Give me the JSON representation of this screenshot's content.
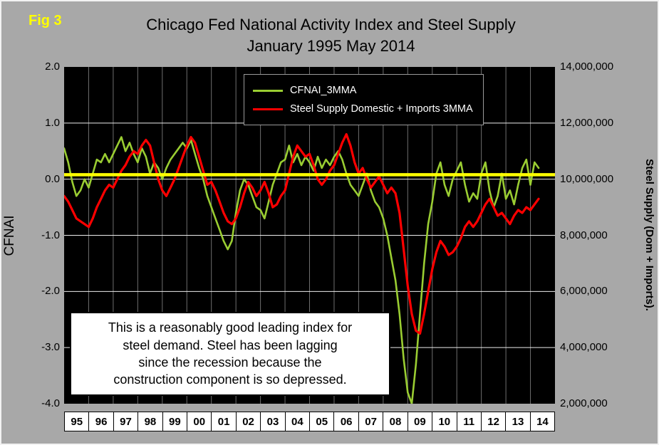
{
  "fig_label": "Fig 3",
  "title_line1": "Chicago Fed National Activity Index and Steel Supply",
  "title_line2": "January 1995 May 2014",
  "left_axis": {
    "title": "CFNAI",
    "ticks": [
      "2.0",
      "1.0",
      "0.0",
      "-1.0",
      "-2.0",
      "-3.0",
      "-4.0"
    ]
  },
  "right_axis": {
    "title": "Steel Supply (Dom + Imports).",
    "ticks": [
      "14,000,000",
      "12,000,000",
      "10,000,000",
      "8,000,000",
      "6,000,000",
      "4,000,000",
      "2,000,000"
    ]
  },
  "x_axis": {
    "years": [
      "95",
      "96",
      "97",
      "98",
      "99",
      "00",
      "01",
      "02",
      "03",
      "04",
      "05",
      "06",
      "07",
      "08",
      "09",
      "10",
      "11",
      "12",
      "13",
      "14"
    ]
  },
  "legend": [
    {
      "label": "CFNAI_3MMA",
      "color": "#9ACD32"
    },
    {
      "label": "Steel Supply Domestic + Imports 3MMA",
      "color": "#FF0000"
    }
  ],
  "annotation": "This is a reasonably good leading index for\nsteel demand. Steel has been lagging\nsince the recession because the\nconstruction component is so depressed.",
  "colors": {
    "background": "#a8a8a8",
    "plot_background": "#000000",
    "cfnai_line": "#9ACD32",
    "steel_line": "#FF0000",
    "reference_line": "#FFFF00",
    "fig_label": "#FFFF00"
  },
  "chart_data": {
    "type": "line",
    "title": "Chicago Fed National Activity Index and Steel Supply, January 1995 May 2014",
    "x_start": "1995-01",
    "x_end": "2014-05",
    "x_step_months": 2,
    "x_total_months": 240,
    "left_ylim": [
      -4.0,
      2.0
    ],
    "right_ylim": [
      2000000,
      14000000
    ],
    "grid": true,
    "legend_position": "top-center-inside",
    "reference_line": {
      "value_left_axis": 0.08,
      "color": "#FFFF00"
    },
    "series": [
      {
        "name": "CFNAI_3MMA",
        "axis": "left",
        "color": "#9ACD32",
        "values": [
          0.55,
          0.3,
          -0.05,
          -0.3,
          -0.2,
          0.0,
          -0.15,
          0.1,
          0.35,
          0.3,
          0.45,
          0.3,
          0.45,
          0.6,
          0.75,
          0.5,
          0.65,
          0.45,
          0.3,
          0.55,
          0.4,
          0.1,
          0.3,
          0.2,
          0.0,
          0.2,
          0.35,
          0.45,
          0.55,
          0.65,
          0.55,
          0.7,
          0.45,
          0.2,
          0.0,
          -0.3,
          -0.5,
          -0.7,
          -0.9,
          -1.1,
          -1.25,
          -1.1,
          -0.6,
          -0.2,
          0.0,
          -0.1,
          -0.3,
          -0.5,
          -0.55,
          -0.7,
          -0.4,
          -0.1,
          0.1,
          0.3,
          0.35,
          0.6,
          0.3,
          0.45,
          0.25,
          0.4,
          0.3,
          0.15,
          0.4,
          0.2,
          0.35,
          0.25,
          0.4,
          0.5,
          0.35,
          0.1,
          -0.1,
          -0.2,
          -0.3,
          -0.1,
          0.1,
          -0.2,
          -0.4,
          -0.5,
          -0.7,
          -1.0,
          -1.4,
          -1.8,
          -2.4,
          -3.2,
          -3.8,
          -4.0,
          -3.3,
          -2.4,
          -1.5,
          -0.8,
          -0.4,
          0.1,
          0.3,
          -0.1,
          -0.3,
          0.0,
          0.15,
          0.3,
          -0.1,
          -0.4,
          -0.25,
          -0.35,
          0.1,
          0.3,
          -0.2,
          -0.5,
          -0.3,
          0.1,
          -0.35,
          -0.2,
          -0.45,
          -0.1,
          0.2,
          0.35,
          -0.1,
          0.3,
          0.2
        ]
      },
      {
        "name": "Steel Supply Domestic + Imports 3MMA",
        "axis": "right",
        "color": "#FF0000",
        "values": [
          9400000,
          9200000,
          8900000,
          8600000,
          8500000,
          8400000,
          8300000,
          8600000,
          9000000,
          9300000,
          9600000,
          9800000,
          9700000,
          10000000,
          10300000,
          10500000,
          10800000,
          11000000,
          10900000,
          11200000,
          11400000,
          11200000,
          10600000,
          10000000,
          9600000,
          9400000,
          9700000,
          10000000,
          10400000,
          10800000,
          11200000,
          11500000,
          11300000,
          10800000,
          10300000,
          9800000,
          9900000,
          9600000,
          9200000,
          8800000,
          8500000,
          8400000,
          8600000,
          9000000,
          9500000,
          9900000,
          9700000,
          9400000,
          9600000,
          9900000,
          9500000,
          9000000,
          9100000,
          9400000,
          9600000,
          10200000,
          10800000,
          11200000,
          11000000,
          10800000,
          10900000,
          10500000,
          10000000,
          9800000,
          10000000,
          10300000,
          10500000,
          10900000,
          11300000,
          11600000,
          11200000,
          10600000,
          10200000,
          10400000,
          10000000,
          9700000,
          9900000,
          10100000,
          9800000,
          9500000,
          9700000,
          9500000,
          8800000,
          7500000,
          6200000,
          5200000,
          4600000,
          4500000,
          5200000,
          6000000,
          6800000,
          7400000,
          7800000,
          7600000,
          7300000,
          7400000,
          7600000,
          7900000,
          8300000,
          8500000,
          8300000,
          8500000,
          8800000,
          9100000,
          9300000,
          9000000,
          8700000,
          8800000,
          8600000,
          8400000,
          8700000,
          8900000,
          8800000,
          9000000,
          8900000,
          9100000,
          9300000
        ]
      }
    ]
  }
}
